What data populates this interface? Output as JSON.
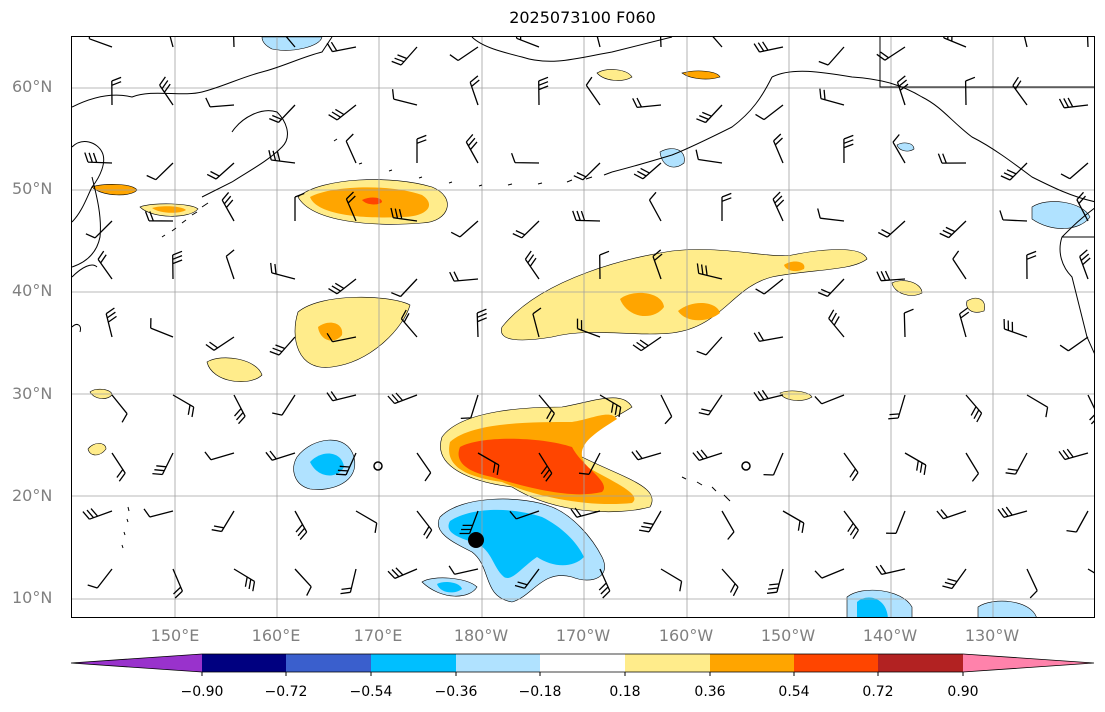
{
  "title": "2025073100 F060",
  "lat_labels": [
    "60°N",
    "50°N",
    "40°N",
    "30°N",
    "20°N",
    "10°N"
  ],
  "lon_labels": [
    "150°E",
    "160°E",
    "170°E",
    "180°W",
    "170°W",
    "160°W",
    "150°W",
    "140°W",
    "130°W"
  ],
  "colorbar": {
    "ticks": [
      "−0.90",
      "−0.72",
      "−0.54",
      "−0.36",
      "−0.18",
      "0.18",
      "0.36",
      "0.54",
      "0.72",
      "0.90"
    ],
    "colors": [
      "#9932cc",
      "#000080",
      "#3a5fcd",
      "#00bfff",
      "#b0e2ff",
      "#ffffff",
      "#ffec8b",
      "#ffa500",
      "#ff4500",
      "#b22222",
      "#ff82ab"
    ]
  },
  "map": {
    "projection": "plate-carree",
    "lon_range": [
      140,
      240
    ],
    "lat_range": [
      8,
      65
    ],
    "gridlines": true,
    "features": [
      "coastlines",
      "wind-barbs",
      "filled-contours"
    ]
  }
}
